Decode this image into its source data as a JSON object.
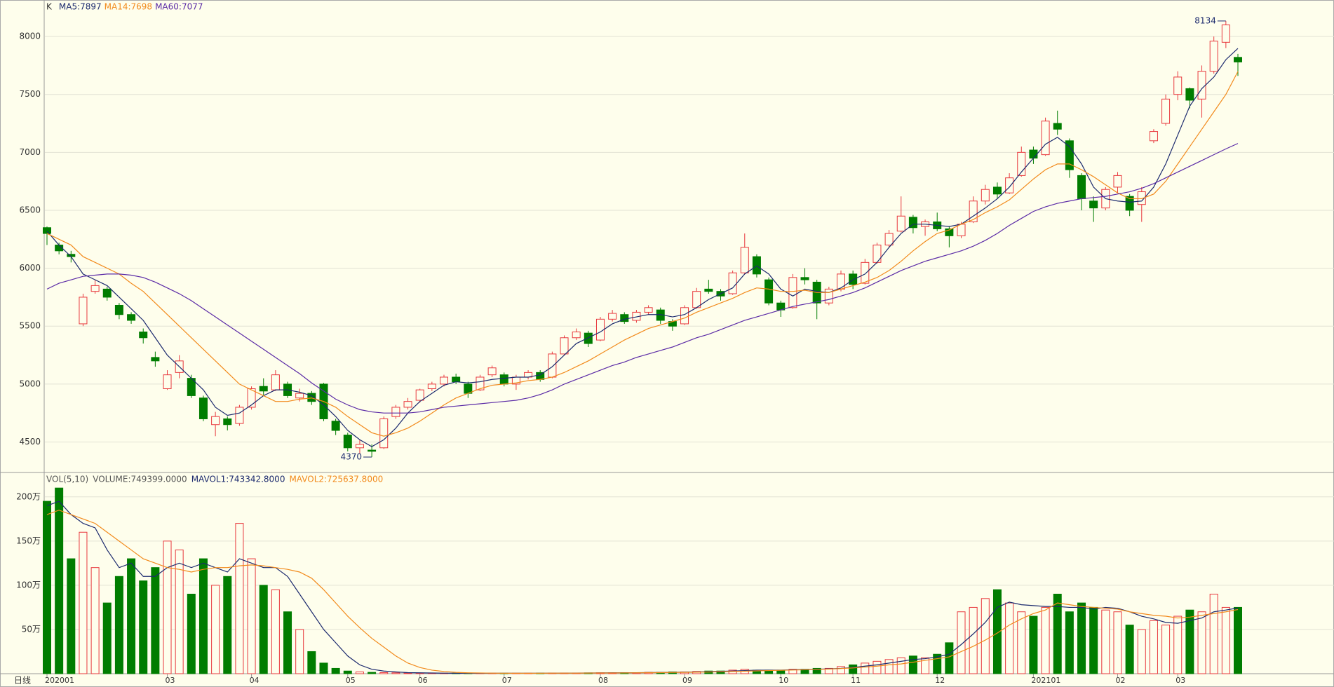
{
  "chart_data": [
    {
      "type": "candlestick",
      "title": "K",
      "up_color": "#e8383d",
      "down_color": "#007d00",
      "ylim": [
        4243,
        8315
      ],
      "yticks": [
        4500,
        5000,
        5500,
        6000,
        6500,
        7000,
        7500,
        8000
      ],
      "grid": true,
      "categories": [
        "202001",
        null,
        null,
        null,
        null,
        null,
        null,
        null,
        null,
        null,
        "03",
        null,
        null,
        null,
        null,
        null,
        null,
        "04",
        null,
        null,
        null,
        null,
        null,
        null,
        null,
        "05",
        null,
        null,
        null,
        null,
        null,
        "06",
        null,
        null,
        null,
        null,
        null,
        null,
        "07",
        null,
        null,
        null,
        null,
        null,
        null,
        null,
        "08",
        null,
        null,
        null,
        null,
        null,
        null,
        "09",
        null,
        null,
        null,
        null,
        null,
        null,
        null,
        "10",
        null,
        null,
        null,
        null,
        null,
        "11",
        null,
        null,
        null,
        null,
        null,
        null,
        "12",
        null,
        null,
        null,
        null,
        null,
        null,
        null,
        "202101",
        null,
        null,
        null,
        null,
        null,
        null,
        "02",
        null,
        null,
        null,
        null,
        "03",
        null,
        null,
        null,
        null,
        null
      ],
      "open": [
        6350,
        6200,
        6120,
        5520,
        5800,
        5820,
        5680,
        5600,
        5450,
        5230,
        4960,
        5100,
        5050,
        4880,
        4650,
        4700,
        4660,
        4800,
        4980,
        4950,
        5000,
        4880,
        4920,
        5000,
        4680,
        4560,
        4450,
        4430,
        4450,
        4720,
        4800,
        4860,
        4960,
        5000,
        5060,
        5000,
        4950,
        5080,
        5080,
        5000,
        5060,
        5100,
        5060,
        5260,
        5400,
        5440,
        5380,
        5560,
        5600,
        5550,
        5620,
        5640,
        5540,
        5520,
        5660,
        5820,
        5800,
        5780,
        5960,
        6100,
        5900,
        5700,
        5660,
        5920,
        5880,
        5700,
        5820,
        5950,
        5870,
        6050,
        6200,
        6320,
        6440,
        6360,
        6400,
        6340,
        6280,
        6400,
        6580,
        6700,
        6650,
        6800,
        7020,
        6980,
        7250,
        7100,
        6800,
        6580,
        6520,
        6700,
        6620,
        6550,
        7100,
        7250,
        7500,
        7550,
        7460,
        7700,
        7950,
        7820
      ],
      "high": [
        6360,
        6220,
        6150,
        5780,
        5900,
        5840,
        5700,
        5620,
        5480,
        5280,
        5120,
        5250,
        5080,
        4900,
        4760,
        4720,
        4820,
        4980,
        5050,
        5120,
        5020,
        4960,
        4940,
        5010,
        4700,
        4580,
        4520,
        4480,
        4720,
        4820,
        4880,
        4960,
        5020,
        5080,
        5090,
        5020,
        5080,
        5160,
        5100,
        5080,
        5120,
        5120,
        5280,
        5420,
        5480,
        5460,
        5580,
        5640,
        5620,
        5640,
        5680,
        5660,
        5560,
        5680,
        5830,
        5900,
        5820,
        5980,
        6300,
        6120,
        5920,
        5720,
        5950,
        6000,
        5900,
        5840,
        5980,
        5980,
        6080,
        6220,
        6330,
        6620,
        6460,
        6420,
        6480,
        6360,
        6400,
        6620,
        6720,
        6740,
        6820,
        7050,
        7050,
        7300,
        7360,
        7120,
        6820,
        6620,
        6700,
        6830,
        6640,
        6700,
        7200,
        7500,
        7700,
        7560,
        7750,
        8000,
        8134,
        7850
      ],
      "low": [
        6200,
        6120,
        6050,
        5500,
        5780,
        5720,
        5560,
        5520,
        5350,
        5150,
        4950,
        5050,
        4880,
        4680,
        4550,
        4600,
        4640,
        4780,
        4900,
        4940,
        4880,
        4850,
        4820,
        4680,
        4560,
        4420,
        4400,
        4370,
        4440,
        4700,
        4780,
        4840,
        4940,
        4980,
        5000,
        4880,
        4940,
        5060,
        4980,
        4950,
        5040,
        5020,
        5050,
        5250,
        5380,
        5320,
        5370,
        5540,
        5520,
        5530,
        5600,
        5520,
        5460,
        5510,
        5650,
        5780,
        5720,
        5770,
        5950,
        5920,
        5680,
        5580,
        5650,
        5860,
        5560,
        5680,
        5800,
        5820,
        5860,
        6040,
        6180,
        6310,
        6300,
        6280,
        6320,
        6180,
        6260,
        6390,
        6550,
        6600,
        6640,
        6790,
        6900,
        6970,
        7150,
        6780,
        6500,
        6400,
        6500,
        6650,
        6450,
        6400,
        7080,
        7230,
        7450,
        7380,
        7300,
        7680,
        7900,
        7660
      ],
      "close": [
        6300,
        6150,
        6100,
        5750,
        5850,
        5750,
        5600,
        5550,
        5400,
        5200,
        5080,
        5200,
        4900,
        4700,
        4720,
        4650,
        4800,
        4960,
        4940,
        5080,
        4900,
        4920,
        4850,
        4700,
        4600,
        4450,
        4480,
        4420,
        4700,
        4800,
        4850,
        4950,
        5000,
        5060,
        5020,
        4920,
        5060,
        5140,
        5000,
        5060,
        5100,
        5040,
        5260,
        5400,
        5450,
        5350,
        5560,
        5610,
        5540,
        5620,
        5660,
        5550,
        5500,
        5660,
        5800,
        5800,
        5760,
        5960,
        6180,
        5950,
        5700,
        5640,
        5920,
        5900,
        5700,
        5820,
        5950,
        5860,
        6050,
        6200,
        6300,
        6450,
        6350,
        6400,
        6340,
        6280,
        6380,
        6580,
        6680,
        6640,
        6780,
        7000,
        6950,
        7270,
        7200,
        6850,
        6600,
        6520,
        6680,
        6800,
        6500,
        6660,
        7180,
        7460,
        7650,
        7450,
        7700,
        7960,
        8100,
        7780
      ],
      "series": [
        {
          "name": "MA5:7897",
          "color": "#1c2a6e",
          "values": [
            6320,
            6200,
            6100,
            5950,
            5900,
            5850,
            5750,
            5650,
            5550,
            5400,
            5250,
            5150,
            5050,
            4950,
            4800,
            4730,
            4750,
            4820,
            4900,
            4950,
            4950,
            4930,
            4900,
            4820,
            4720,
            4600,
            4520,
            4460,
            4520,
            4620,
            4750,
            4850,
            4920,
            4990,
            5020,
            5010,
            5020,
            5040,
            5050,
            5060,
            5060,
            5080,
            5150,
            5250,
            5350,
            5400,
            5450,
            5520,
            5560,
            5580,
            5600,
            5600,
            5580,
            5600,
            5660,
            5730,
            5780,
            5830,
            5950,
            6020,
            5950,
            5820,
            5760,
            5820,
            5800,
            5790,
            5830,
            5900,
            5950,
            6050,
            6180,
            6300,
            6380,
            6380,
            6370,
            6360,
            6380,
            6450,
            6520,
            6600,
            6700,
            6830,
            6950,
            7070,
            7130,
            7050,
            6900,
            6700,
            6600,
            6580,
            6570,
            6580,
            6700,
            6900,
            7150,
            7400,
            7550,
            7650,
            7800,
            7897
          ]
        },
        {
          "name": "MA14:7698",
          "color": "#f28a1c",
          "values": [
            6300,
            6250,
            6200,
            6100,
            6050,
            6000,
            5950,
            5870,
            5800,
            5700,
            5600,
            5500,
            5400,
            5300,
            5200,
            5100,
            5000,
            4950,
            4900,
            4850,
            4850,
            4870,
            4880,
            4850,
            4800,
            4720,
            4650,
            4580,
            4550,
            4580,
            4620,
            4680,
            4750,
            4820,
            4880,
            4920,
            4960,
            4990,
            5000,
            5010,
            5030,
            5040,
            5060,
            5100,
            5150,
            5200,
            5260,
            5320,
            5380,
            5430,
            5480,
            5510,
            5540,
            5570,
            5620,
            5660,
            5700,
            5740,
            5790,
            5830,
            5820,
            5800,
            5800,
            5810,
            5790,
            5790,
            5820,
            5850,
            5880,
            5920,
            5980,
            6060,
            6150,
            6230,
            6300,
            6330,
            6380,
            6420,
            6480,
            6530,
            6590,
            6680,
            6770,
            6850,
            6900,
            6900,
            6850,
            6790,
            6720,
            6650,
            6600,
            6600,
            6640,
            6750,
            6900,
            7050,
            7200,
            7350,
            7500,
            7698
          ]
        },
        {
          "name": "MA60:7077",
          "color": "#5b2ba6",
          "values": [
            5820,
            5870,
            5900,
            5930,
            5940,
            5950,
            5950,
            5940,
            5920,
            5880,
            5830,
            5780,
            5720,
            5650,
            5580,
            5510,
            5440,
            5370,
            5300,
            5230,
            5160,
            5090,
            5010,
            4940,
            4870,
            4820,
            4780,
            4760,
            4750,
            4750,
            4750,
            4760,
            4780,
            4800,
            4810,
            4820,
            4830,
            4840,
            4850,
            4860,
            4880,
            4910,
            4950,
            5000,
            5040,
            5080,
            5120,
            5160,
            5190,
            5230,
            5260,
            5290,
            5320,
            5360,
            5400,
            5430,
            5470,
            5510,
            5550,
            5580,
            5610,
            5640,
            5670,
            5690,
            5710,
            5730,
            5760,
            5790,
            5830,
            5880,
            5930,
            5980,
            6020,
            6060,
            6090,
            6120,
            6150,
            6190,
            6240,
            6300,
            6370,
            6430,
            6490,
            6530,
            6560,
            6580,
            6600,
            6610,
            6620,
            6640,
            6660,
            6690,
            6730,
            6780,
            6830,
            6880,
            6930,
            6980,
            7030,
            7077
          ]
        }
      ]
    },
    {
      "type": "bar",
      "title": "VOL(5,10)",
      "volume_label": "VOLUME:749399.0000",
      "period_label": "日线",
      "ylim": [
        0,
        226
      ],
      "yticks": [
        {
          "value": 50,
          "label": "50万"
        },
        {
          "value": 100,
          "label": "100万"
        },
        {
          "value": 150,
          "label": "150万"
        },
        {
          "value": 200,
          "label": "200万"
        }
      ],
      "grid": true,
      "values": [
        195,
        210,
        130,
        160,
        120,
        80,
        110,
        130,
        105,
        120,
        150,
        140,
        90,
        130,
        100,
        110,
        170,
        130,
        100,
        95,
        70,
        50,
        25,
        12,
        6,
        3,
        2,
        1.5,
        1.2,
        1,
        0.8,
        0.6,
        0.5,
        0.5,
        0.5,
        0.5,
        0.5,
        0.5,
        0.5,
        0.5,
        0.5,
        0.6,
        0.7,
        0.8,
        0.8,
        0.9,
        1,
        1,
        1.2,
        1.2,
        1.5,
        1.5,
        2,
        2,
        2.5,
        3,
        3,
        4,
        5,
        4,
        4,
        4,
        5,
        5,
        6,
        6,
        8,
        10,
        12,
        14,
        16,
        18,
        20,
        18,
        22,
        35,
        70,
        75,
        85,
        95,
        80,
        70,
        65,
        75,
        90,
        70,
        80,
        75,
        72,
        70,
        55,
        50,
        60,
        55,
        65,
        72,
        70,
        90,
        75,
        75
      ],
      "series": [
        {
          "name": "MAVOL1:743342.8000",
          "color": "#1c2a6e",
          "values": [
            190,
            195,
            180,
            170,
            165,
            140,
            120,
            125,
            110,
            110,
            120,
            125,
            120,
            125,
            120,
            115,
            130,
            125,
            120,
            120,
            110,
            90,
            70,
            50,
            35,
            20,
            10,
            5,
            3,
            2,
            1.2,
            1,
            0.8,
            0.6,
            0.5,
            0.5,
            0.5,
            0.5,
            0.5,
            0.5,
            0.5,
            0.5,
            0.6,
            0.6,
            0.7,
            0.8,
            0.9,
            1,
            1,
            1.1,
            1.3,
            1.4,
            1.6,
            1.8,
            2,
            2.3,
            2.7,
            3,
            3.5,
            4,
            4,
            4,
            4.5,
            4.7,
            5,
            5.5,
            6,
            7,
            8.5,
            10,
            12,
            14,
            16,
            17,
            19,
            22,
            33,
            45,
            58,
            75,
            81,
            78,
            77,
            76,
            76,
            75,
            75,
            73,
            75,
            74,
            70,
            65,
            62,
            58,
            57,
            60,
            63,
            70,
            72,
            74.33428
          ]
        },
        {
          "name": "MAVOL2:725637.8000",
          "color": "#f28a1c",
          "values": [
            180,
            185,
            180,
            175,
            170,
            160,
            150,
            140,
            130,
            125,
            120,
            118,
            115,
            118,
            120,
            120,
            122,
            123,
            122,
            120,
            118,
            115,
            108,
            95,
            80,
            65,
            52,
            40,
            30,
            20,
            12,
            7,
            4,
            2.5,
            1.5,
            1,
            0.8,
            0.6,
            0.5,
            0.5,
            0.5,
            0.5,
            0.6,
            0.6,
            0.6,
            0.7,
            0.8,
            0.8,
            0.9,
            1,
            1.1,
            1.2,
            1.4,
            1.5,
            1.7,
            1.9,
            2.2,
            2.5,
            2.8,
            3.2,
            3.5,
            3.8,
            4.1,
            4.4,
            4.8,
            5.2,
            5.8,
            6.5,
            7.5,
            8.5,
            10,
            11,
            13,
            15,
            17,
            19,
            25,
            31,
            38,
            46,
            55,
            62,
            68,
            72,
            80,
            78,
            76,
            75,
            74,
            73,
            70,
            68,
            66,
            65,
            63,
            64,
            66,
            68,
            70,
            72.56378
          ]
        }
      ]
    }
  ]
}
